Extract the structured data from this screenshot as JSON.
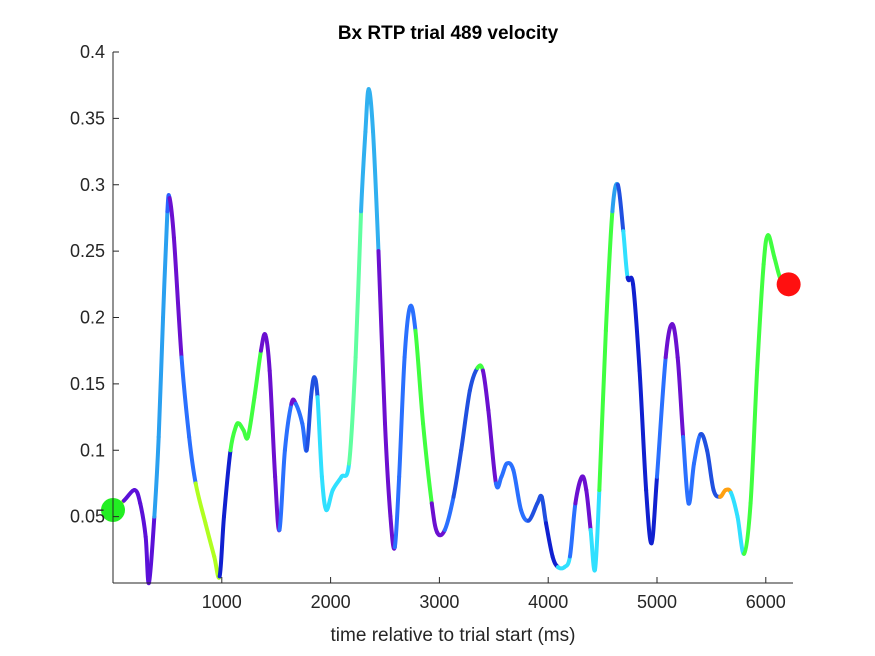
{
  "chart_data": {
    "type": "line",
    "title": "Bx  RTP trial 489 velocity",
    "xlabel": "time relative to trial start (ms)",
    "ylabel": "",
    "xlim": [
      0,
      6250
    ],
    "ylim": [
      0,
      0.4
    ],
    "xticks": [
      1000,
      2000,
      3000,
      4000,
      5000,
      6000
    ],
    "yticks": [
      0.05,
      0.1,
      0.15,
      0.2,
      0.25,
      0.3,
      0.35,
      0.4
    ],
    "grid": false,
    "series": [
      {
        "points": [
          [
            0,
            0.055
          ],
          [
            100,
            0.062
          ],
          [
            200,
            0.07
          ],
          [
            250,
            0.06
          ],
          [
            300,
            0.035
          ],
          [
            330,
            0.0
          ],
          [
            380,
            0.05
          ],
          [
            420,
            0.11
          ],
          [
            460,
            0.2
          ],
          [
            500,
            0.28
          ],
          [
            520,
            0.29
          ],
          [
            560,
            0.26
          ],
          [
            630,
            0.17
          ],
          [
            700,
            0.11
          ],
          [
            760,
            0.075
          ],
          [
            850,
            0.045
          ],
          [
            930,
            0.02
          ],
          [
            980,
            0.005
          ],
          [
            1020,
            0.05
          ],
          [
            1080,
            0.1
          ],
          [
            1130,
            0.118
          ],
          [
            1160,
            0.12
          ],
          [
            1200,
            0.115
          ],
          [
            1240,
            0.11
          ],
          [
            1300,
            0.14
          ],
          [
            1360,
            0.175
          ],
          [
            1400,
            0.187
          ],
          [
            1440,
            0.16
          ],
          [
            1490,
            0.08
          ],
          [
            1530,
            0.04
          ],
          [
            1580,
            0.1
          ],
          [
            1640,
            0.135
          ],
          [
            1680,
            0.135
          ],
          [
            1740,
            0.12
          ],
          [
            1780,
            0.1
          ],
          [
            1820,
            0.14
          ],
          [
            1850,
            0.155
          ],
          [
            1880,
            0.14
          ],
          [
            1920,
            0.08
          ],
          [
            1960,
            0.055
          ],
          [
            2020,
            0.07
          ],
          [
            2100,
            0.08
          ],
          [
            2170,
            0.09
          ],
          [
            2230,
            0.17
          ],
          [
            2280,
            0.28
          ],
          [
            2320,
            0.34
          ],
          [
            2350,
            0.372
          ],
          [
            2390,
            0.34
          ],
          [
            2440,
            0.25
          ],
          [
            2500,
            0.12
          ],
          [
            2550,
            0.05
          ],
          [
            2590,
            0.027
          ],
          [
            2630,
            0.08
          ],
          [
            2680,
            0.17
          ],
          [
            2730,
            0.208
          ],
          [
            2780,
            0.19
          ],
          [
            2850,
            0.12
          ],
          [
            2930,
            0.06
          ],
          [
            2980,
            0.038
          ],
          [
            3050,
            0.04
          ],
          [
            3130,
            0.065
          ],
          [
            3200,
            0.1
          ],
          [
            3280,
            0.145
          ],
          [
            3350,
            0.162
          ],
          [
            3400,
            0.16
          ],
          [
            3450,
            0.13
          ],
          [
            3520,
            0.075
          ],
          [
            3570,
            0.08
          ],
          [
            3620,
            0.09
          ],
          [
            3680,
            0.085
          ],
          [
            3750,
            0.055
          ],
          [
            3820,
            0.047
          ],
          [
            3900,
            0.06
          ],
          [
            3940,
            0.065
          ],
          [
            3980,
            0.045
          ],
          [
            4040,
            0.02
          ],
          [
            4090,
            0.012
          ],
          [
            4150,
            0.012
          ],
          [
            4200,
            0.02
          ],
          [
            4250,
            0.06
          ],
          [
            4310,
            0.08
          ],
          [
            4350,
            0.07
          ],
          [
            4390,
            0.04
          ],
          [
            4430,
            0.01
          ],
          [
            4470,
            0.07
          ],
          [
            4530,
            0.19
          ],
          [
            4590,
            0.28
          ],
          [
            4640,
            0.3
          ],
          [
            4690,
            0.265
          ],
          [
            4730,
            0.23
          ],
          [
            4780,
            0.225
          ],
          [
            4840,
            0.16
          ],
          [
            4900,
            0.07
          ],
          [
            4950,
            0.03
          ],
          [
            5000,
            0.08
          ],
          [
            5080,
            0.17
          ],
          [
            5140,
            0.195
          ],
          [
            5190,
            0.17
          ],
          [
            5240,
            0.11
          ],
          [
            5290,
            0.06
          ],
          [
            5340,
            0.09
          ],
          [
            5400,
            0.112
          ],
          [
            5460,
            0.1
          ],
          [
            5520,
            0.07
          ],
          [
            5580,
            0.065
          ],
          [
            5630,
            0.07
          ],
          [
            5680,
            0.068
          ],
          [
            5740,
            0.05
          ],
          [
            5800,
            0.022
          ],
          [
            5860,
            0.06
          ],
          [
            5920,
            0.16
          ],
          [
            5980,
            0.24
          ],
          [
            6020,
            0.262
          ],
          [
            6080,
            0.245
          ],
          [
            6140,
            0.228
          ],
          [
            6210,
            0.225
          ]
        ],
        "segment_colors": [
          "#b0ff20",
          "#5b10d8",
          "#5b10d8",
          "#5b10d8",
          "#5b10d8",
          "#5b10d8",
          "#2aa0f0",
          "#2aa0f0",
          "#2aa0f0",
          "#2a60ff",
          "#6b10d0",
          "#6b10d0",
          "#2a70ff",
          "#2a70ff",
          "#b0ff20",
          "#b0ff20",
          "#b0ff20",
          "#1020d0",
          "#1020d0",
          "#40ff40",
          "#40ff40",
          "#40ff40",
          "#40ff40",
          "#40ff40",
          "#40ff40",
          "#6b10d0",
          "#6b10d0",
          "#6b10d0",
          "#6b10d0",
          "#2a70ff",
          "#2a70ff",
          "#7010d0",
          "#2a70ff",
          "#2a70ff",
          "#2050e0",
          "#2050e0",
          "#2050e0",
          "#30e0ff",
          "#30e0ff",
          "#30e0ff",
          "#30e0ff",
          "#30e0ff",
          "#60ffa0",
          "#60ffa0",
          "#30b0f0",
          "#30b0f0",
          "#30b0f0",
          "#30b0f0",
          "#6b10d0",
          "#6b10d0",
          "#6b10d0",
          "#2a70ff",
          "#2a70ff",
          "#2a70ff",
          "#2a70ff",
          "#40ff40",
          "#40ff40",
          "#6b10d0",
          "#6b10d0",
          "#2a70ff",
          "#2050e0",
          "#2050e0",
          "#2050e0",
          "#40ff40",
          "#6b10d0",
          "#6b10d0",
          "#2a70ff",
          "#2a70ff",
          "#2a70ff",
          "#2a70ff",
          "#2a70ff",
          "#2050e0",
          "#2050e0",
          "#2050e0",
          "#1020d0",
          "#1020d0",
          "#30e0ff",
          "#30e0ff",
          "#2a70ff",
          "#6b10d0",
          "#6b10d0",
          "#6b10d0",
          "#30e0ff",
          "#30e0ff",
          "#40ff40",
          "#40ff40",
          "#2aa0f0",
          "#2050e0",
          "#30e0ff",
          "#1020d0",
          "#1020d0",
          "#1020d0",
          "#1020d0",
          "#1020d0",
          "#2a70ff",
          "#6b10d0",
          "#6b10d0",
          "#6b10d0",
          "#2a70ff",
          "#2a70ff",
          "#2a70ff",
          "#2050e0",
          "#2050e0",
          "#2050e0",
          "#ffa010",
          "#ffa010",
          "#30e0ff",
          "#30e0ff",
          "#40ff40",
          "#40ff40",
          "#40ff40",
          "#40ff40",
          "#40ff40",
          "#40ff40",
          "#40ff40"
        ]
      }
    ],
    "markers": {
      "start": {
        "x": 0,
        "y": 0.055,
        "color": "#22ee22"
      },
      "end": {
        "x": 6210,
        "y": 0.225,
        "color": "#ff1010"
      }
    }
  }
}
